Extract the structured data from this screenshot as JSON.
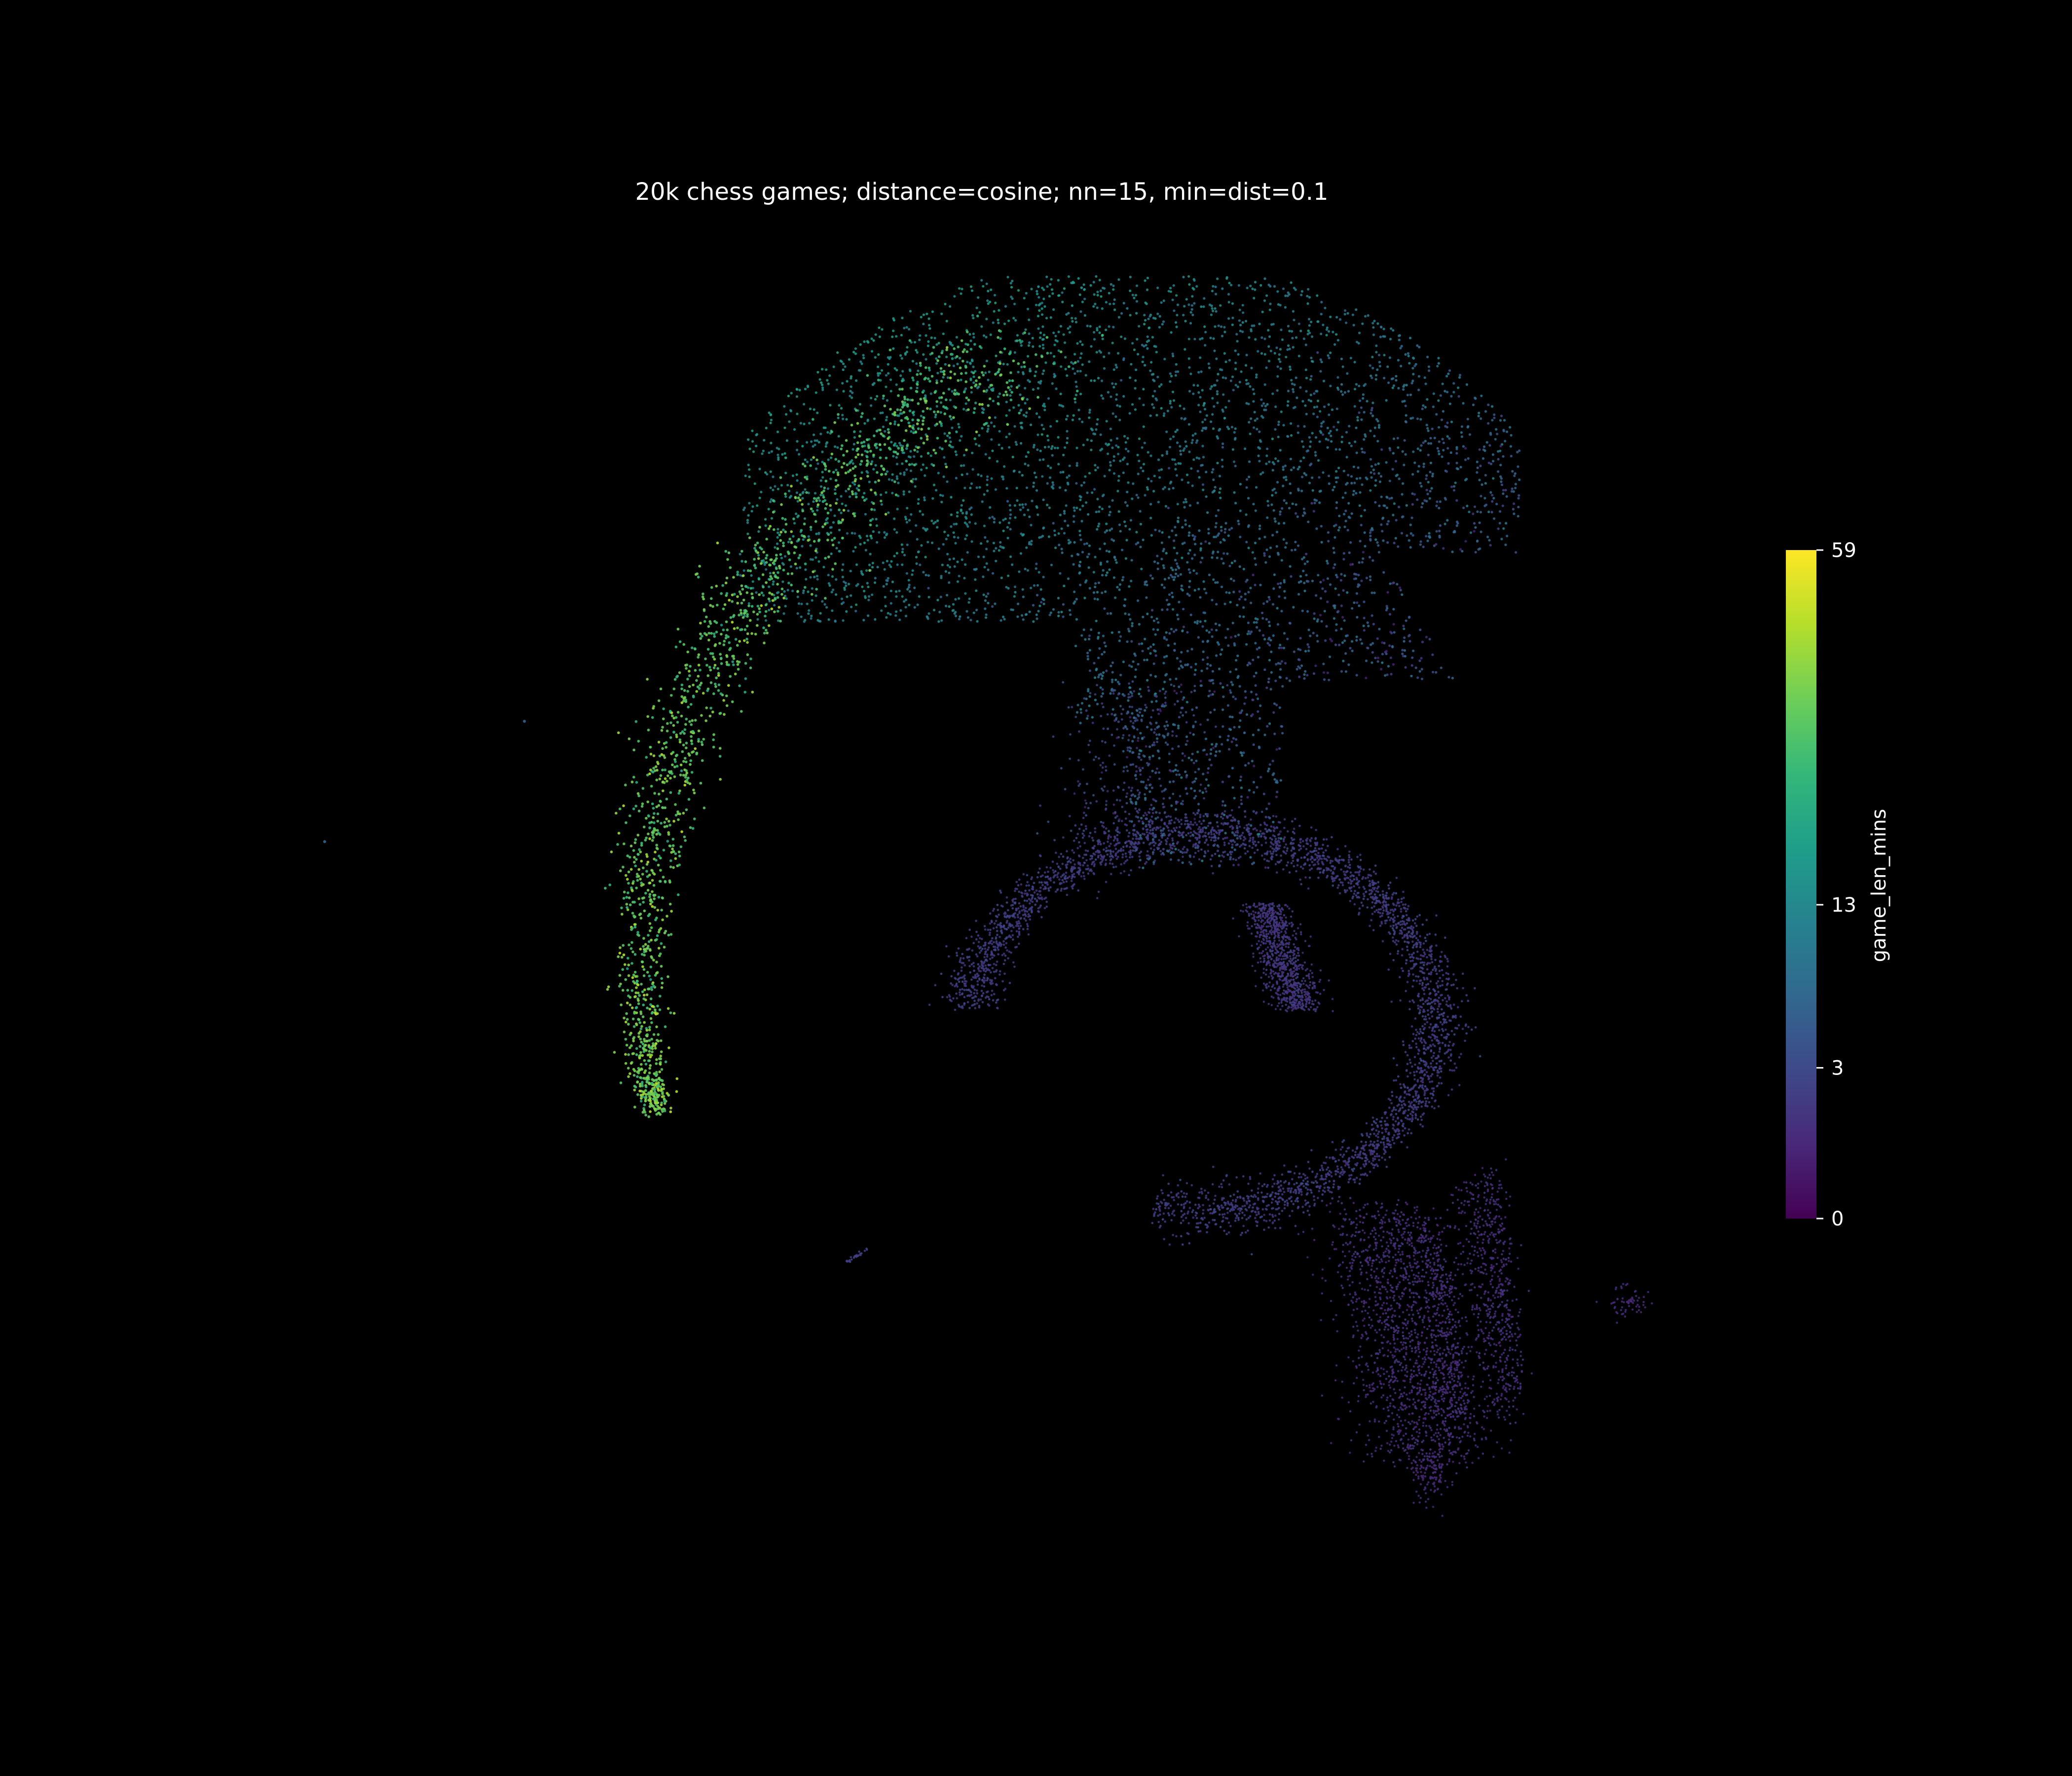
{
  "chart_data": {
    "type": "scatter",
    "title": "20k chess games; distance=cosine; nn=15, min=dist=0.1",
    "xlabel": "",
    "ylabel": "",
    "axes_visible": false,
    "grid": false,
    "legend": "none",
    "background": "#000000",
    "text_color": "#ffffff",
    "n_points_approx": 20000,
    "color_by": "game_len_mins",
    "colorbar": {
      "label": "game_len_mins",
      "placement": "right",
      "colormap": "viridis",
      "scale": "sqrt",
      "range": [
        0,
        59
      ],
      "ticks": [
        0,
        3,
        13,
        59
      ],
      "tick_labels": [
        "0",
        "3",
        "13",
        "59"
      ],
      "colors": [
        "#440154",
        "#482878",
        "#3e4989",
        "#31688e",
        "#26828e",
        "#1f9e89",
        "#35b779",
        "#6ece58",
        "#b5de2b",
        "#fde725"
      ]
    },
    "regions": [
      {
        "description": "upper dome, long games",
        "game_len_mins_range": [
          5,
          20
        ]
      },
      {
        "description": "left arm, longest games",
        "game_len_mins_range": [
          25,
          45
        ]
      },
      {
        "description": "middle ring, short games",
        "game_len_mins_range": [
          0,
          3
        ]
      },
      {
        "description": "lower bands, shortest games",
        "game_len_mins_range": [
          0,
          2
        ]
      }
    ]
  }
}
